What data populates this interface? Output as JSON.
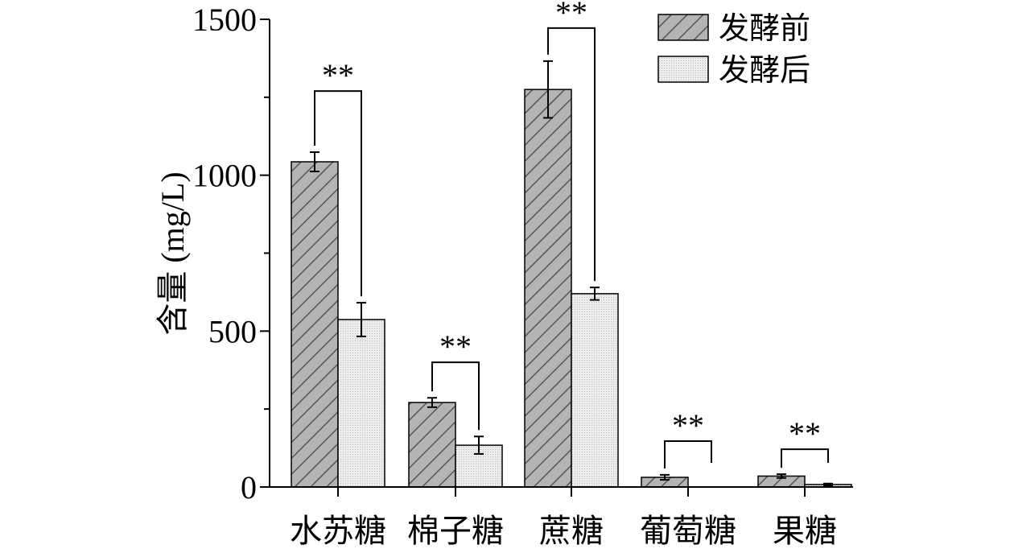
{
  "chart_data": {
    "type": "bar",
    "title": "",
    "xlabel": "",
    "ylabel": "含量 (mg/L)",
    "ylim": [
      0,
      1500
    ],
    "yticks": [
      0,
      500,
      1000,
      1500
    ],
    "categories": [
      "水苏糖",
      "棉子糖",
      "蔗糖",
      "葡萄糖",
      "果糖"
    ],
    "series": [
      {
        "name": "发酵前",
        "values": [
          1043,
          271,
          1275,
          31,
          35
        ],
        "errors": [
          31,
          15,
          91,
          8,
          6
        ],
        "color": "#a8a8a8",
        "pattern": "hatch"
      },
      {
        "name": "发酵后",
        "values": [
          537,
          134,
          620,
          0,
          8
        ],
        "errors": [
          54,
          28,
          20,
          0,
          3
        ],
        "color": "#e4e4e4",
        "pattern": "dots"
      }
    ],
    "significance": [
      "**",
      "**",
      "**",
      "**",
      "**"
    ],
    "significance_bracket_level": [
      1270,
      400,
      1472,
      147,
      121
    ],
    "legend_position": "top-right",
    "grid": false
  }
}
